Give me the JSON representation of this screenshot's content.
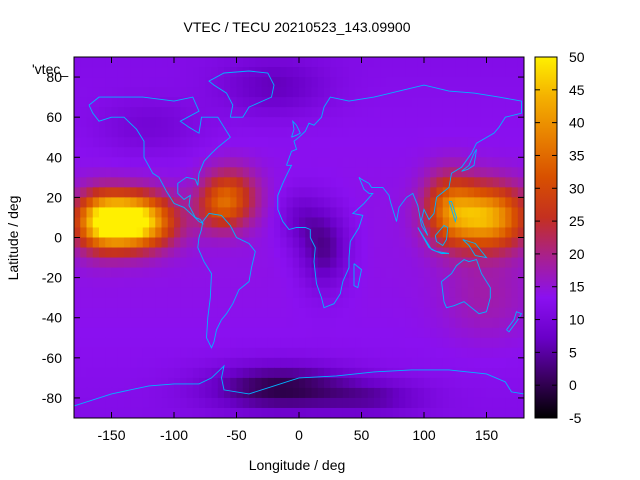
{
  "chart_data": {
    "type": "heatmap",
    "title": "VTEC / TECU 20210523_143.09900",
    "xlabel": "Longitude / deg",
    "ylabel": "Latitude / deg",
    "legend_label": "'vtec_",
    "xlim": [
      -180,
      180
    ],
    "ylim": [
      -90,
      90
    ],
    "xticks": [
      -150,
      -100,
      -50,
      0,
      50,
      100,
      150
    ],
    "yticks": [
      -80,
      -60,
      -40,
      -20,
      0,
      20,
      40,
      60,
      80
    ],
    "colorbar": {
      "range": [
        -5,
        50
      ],
      "ticks": [
        -5,
        0,
        5,
        10,
        15,
        20,
        25,
        30,
        35,
        40,
        45,
        50
      ],
      "palette": [
        "#000000",
        "#3a0060",
        "#6a00c8",
        "#8a10f0",
        "#a82090",
        "#c43020",
        "#d85000",
        "#e88000",
        "#f4b000",
        "#fff000"
      ]
    },
    "grid": false,
    "background_level": 12,
    "features": [
      {
        "lon": -135,
        "lat": 8,
        "peak": 44,
        "slon": 22,
        "slat": 9
      },
      {
        "lon": -160,
        "lat": 8,
        "peak": 18,
        "slon": 14,
        "slat": 10
      },
      {
        "lon": 150,
        "lat": 10,
        "peak": 30,
        "slon": 22,
        "slat": 11
      },
      {
        "lon": 120,
        "lat": 15,
        "peak": 16,
        "slon": 14,
        "slat": 12
      },
      {
        "lon": -55,
        "lat": 20,
        "peak": 16,
        "slon": 15,
        "slat": 10
      },
      {
        "lon": -65,
        "lat": 15,
        "peak": 8,
        "slon": 12,
        "slat": 8
      },
      {
        "lon": 20,
        "lat": -5,
        "peak": -10,
        "slon": 14,
        "slat": 14
      },
      {
        "lon": 0,
        "lat": 10,
        "peak": -5,
        "slon": 12,
        "slat": 10
      },
      {
        "lon": -15,
        "lat": -75,
        "peak": -13,
        "slon": 40,
        "slat": 8
      },
      {
        "lon": 60,
        "lat": -80,
        "peak": -6,
        "slon": 30,
        "slat": 6
      },
      {
        "lon": -20,
        "lat": 75,
        "peak": -6,
        "slon": 30,
        "slat": 10
      },
      {
        "lon": -120,
        "lat": 55,
        "peak": -4,
        "slon": 30,
        "slat": 10
      },
      {
        "lon": 150,
        "lat": -30,
        "peak": 4,
        "slon": 25,
        "slat": 15
      }
    ]
  }
}
